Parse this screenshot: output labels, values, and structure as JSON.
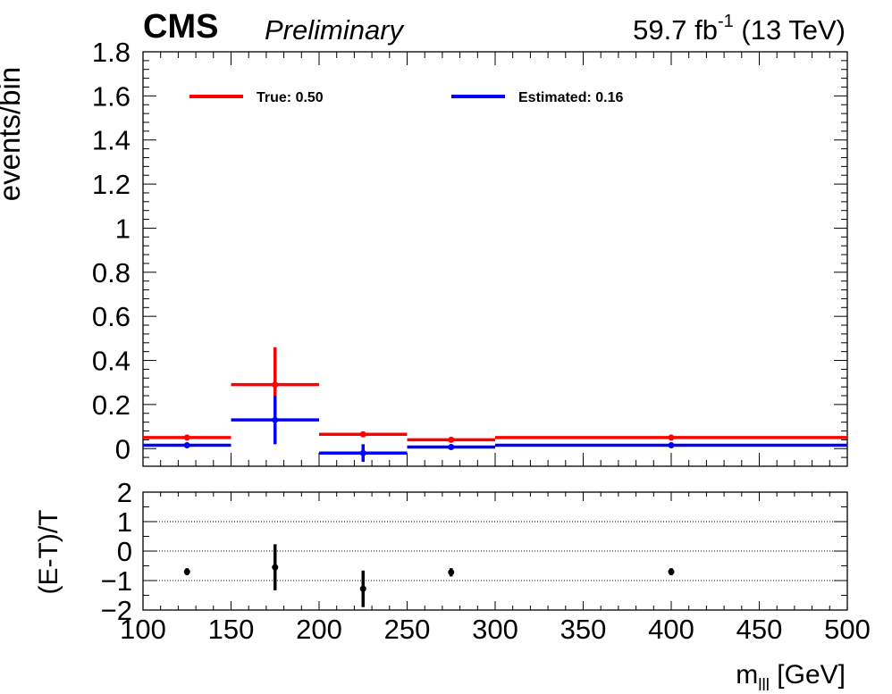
{
  "header": {
    "experiment": "CMS",
    "status": "Preliminary",
    "lumi_value": "59.7 fb",
    "lumi_exp": "-1",
    "energy": "(13 TeV)"
  },
  "chart_data": [
    {
      "type": "histogram",
      "panel": "main",
      "ylabel": "events/bin",
      "ylim": [
        -0.08,
        1.8
      ],
      "yticks": [
        "0",
        "0.2",
        "0.4",
        "0.6",
        "0.8",
        "1",
        "1.2",
        "1.4",
        "1.6",
        "1.8"
      ],
      "bin_edges": [
        100,
        150,
        200,
        250,
        300,
        500
      ],
      "legend": {
        "placement": "top",
        "entries": [
          "True: 0.50",
          "Estimated: 0.16"
        ]
      },
      "series": [
        {
          "name": "True: 0.50",
          "color": "#ff0000",
          "x": [
            125,
            175,
            225,
            275,
            400
          ],
          "values": [
            0.05,
            0.29,
            0.065,
            0.04,
            0.05
          ],
          "errors": [
            0.008,
            0.17,
            0.008,
            0.008,
            0.008
          ]
        },
        {
          "name": "Estimated: 0.16",
          "color": "#0000ff",
          "x": [
            125,
            175,
            225,
            275,
            400
          ],
          "values": [
            0.015,
            0.13,
            -0.02,
            0.007,
            0.015
          ],
          "errors": [
            0.008,
            0.11,
            0.04,
            0.008,
            0.008
          ]
        }
      ]
    },
    {
      "type": "scatter",
      "panel": "ratio",
      "ylabel": "(E-T)/T",
      "xlabel_main": "m",
      "xlabel_sub": "lll",
      "xlabel_unit": "[GeV]",
      "xlim": [
        100,
        500
      ],
      "ylim": [
        -2,
        2
      ],
      "xticks": [
        "100",
        "150",
        "200",
        "250",
        "300",
        "350",
        "400",
        "450",
        "500"
      ],
      "yticks": [
        "−2",
        "−1",
        "0",
        "1",
        "2"
      ],
      "grid": "dotted horizontal at -1, 0, 1",
      "color": "#000000",
      "x": [
        125,
        175,
        225,
        275,
        400
      ],
      "values": [
        -0.7,
        -0.55,
        -1.28,
        -0.72,
        -0.7
      ],
      "errors": [
        0.12,
        0.78,
        0.62,
        0.14,
        0.12
      ]
    }
  ]
}
